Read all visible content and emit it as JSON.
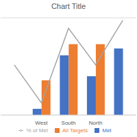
{
  "chart_data": {
    "type": "bar",
    "title": "Chart Title",
    "categories": [
      null,
      "West",
      "South",
      "North",
      null
    ],
    "series": [
      {
        "name": "Met",
        "color": "#4472c4",
        "values": [
          null,
          0.45,
          4.3,
          2.8,
          4.8
        ]
      },
      {
        "name": "All Targets",
        "color": "#ed7d31",
        "values": [
          null,
          2.5,
          5.1,
          5.1,
          null
        ]
      },
      {
        "name": "% of Met",
        "color": "#a5a5a5",
        "type": "line",
        "axis": "y2",
        "values": [
          0.62,
          0.15,
          1.07,
          0.62,
          1.17
        ]
      }
    ],
    "ylim": [
      0,
      7
    ],
    "yticks": [
      0,
      1,
      2,
      3,
      4,
      5,
      6,
      7
    ],
    "y2lim": [
      0,
      1.2
    ],
    "y2ticks": [
      0,
      0.2,
      0.4,
      0.6,
      0.8,
      1,
      1.2
    ],
    "grid": true,
    "tick_labels": "x",
    "legend": "bottom"
  }
}
